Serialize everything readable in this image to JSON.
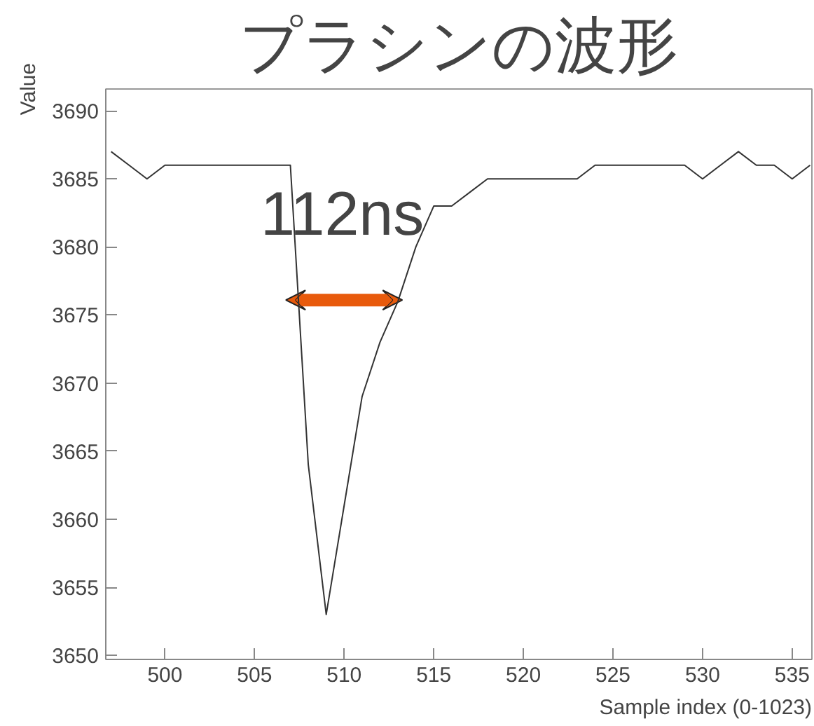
{
  "chart_data": {
    "type": "line",
    "title": "プラシンの波形",
    "xlabel": "Sample index (0-1023)",
    "ylabel": "Value",
    "x": [
      497,
      498,
      499,
      500,
      501,
      502,
      503,
      504,
      505,
      506,
      507,
      508,
      509,
      510,
      511,
      512,
      513,
      514,
      515,
      516,
      517,
      518,
      519,
      520,
      521,
      522,
      523,
      524,
      525,
      526,
      527,
      528,
      529,
      530,
      531,
      532,
      533,
      534,
      535,
      536
    ],
    "series": [
      {
        "color": "#333333",
        "values": [
          3687,
          3686,
          3685,
          3686,
          3686,
          3686,
          3686,
          3686,
          3686,
          3686,
          3686,
          3664,
          3653,
          3661,
          3669,
          3673,
          3676,
          3680,
          3683,
          3683,
          3684,
          3685,
          3685,
          3685,
          3685,
          3685,
          3685,
          3686,
          3686,
          3686,
          3686,
          3686,
          3686,
          3685,
          3686,
          3687,
          3686,
          3686,
          3685,
          3686
        ]
      }
    ],
    "annotations": [
      "112ns"
    ],
    "xlim": [
      496.7,
      536.1
    ],
    "ylim": [
      3649.7,
      3691.6
    ],
    "xticks": [
      500,
      505,
      510,
      515,
      520,
      525,
      530,
      535
    ],
    "yticks": [
      3650,
      3655,
      3660,
      3665,
      3670,
      3675,
      3680,
      3685,
      3690
    ],
    "grid": false,
    "marker": "none",
    "line_style": "solid"
  }
}
